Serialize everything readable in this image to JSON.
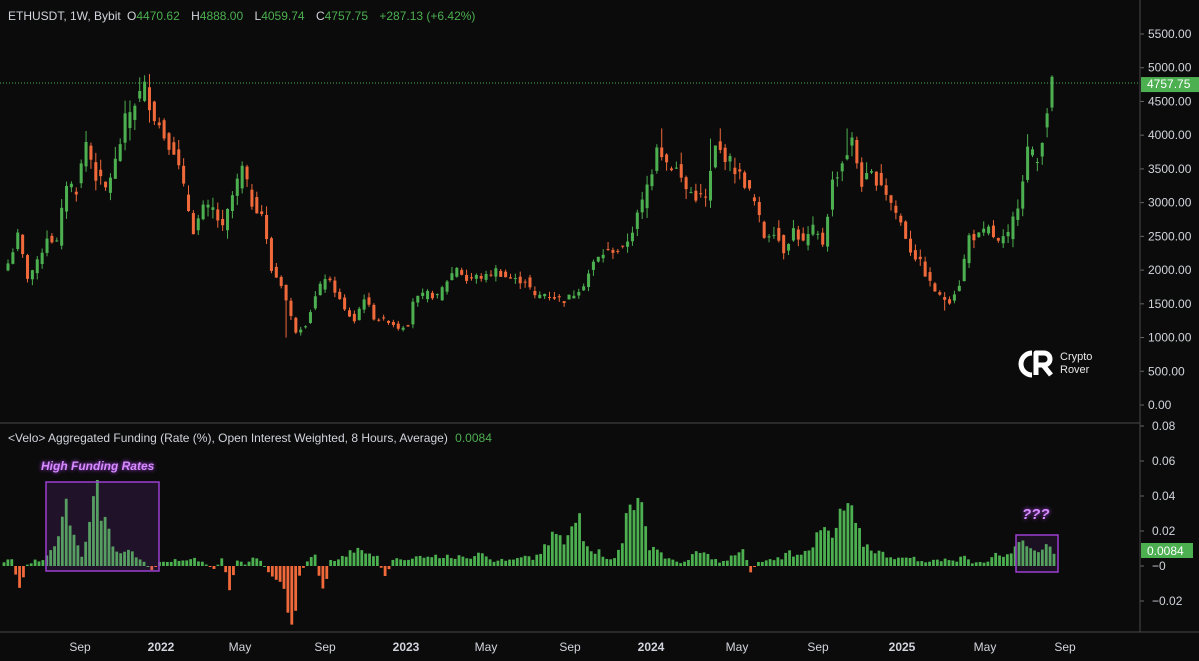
{
  "header": {
    "symbol": "ETHUSDT, 1W, Bybit",
    "o_label": "O",
    "o_value": "4470.62",
    "h_label": "H",
    "h_value": "4888.00",
    "l_label": "L",
    "l_value": "4059.74",
    "c_label": "C",
    "c_value": "4757.75",
    "change": "+287.13 (+6.42%)"
  },
  "indicator": {
    "title": "<Velo> Aggregated Funding (Rate (%), Open Interest Weighted, 8 Hours, Average)",
    "value": "0.0084"
  },
  "logo": {
    "line1": "Crypto",
    "line2": "Rover"
  },
  "annotations": {
    "high_funding": "High Funding Rates",
    "question": "???"
  },
  "colors": {
    "up": "#4caf50",
    "down": "#f0693a",
    "box": "#9c3fd1",
    "bg": "#0b0b0b"
  },
  "chart_data": [
    {
      "type": "candlestick",
      "title": "ETHUSDT, 1W, Bybit",
      "ylim": [
        0,
        5800
      ],
      "y_ticks": [
        "5500.00",
        "5000.00",
        "4500.00",
        "4000.00",
        "3500.00",
        "3000.00",
        "2500.00",
        "2000.00",
        "1500.00",
        "1000.00",
        "500.00",
        "0.00"
      ],
      "last_price_label": "4757.75",
      "x_ticks": [
        "Sep",
        "2022",
        "May",
        "Sep",
        "2023",
        "May",
        "Sep",
        "2024",
        "May",
        "Sep",
        "2025",
        "May",
        "Sep"
      ],
      "x": {
        "start": "2021-06-28",
        "interval_days": 7
      },
      "anchors": [
        [
          0,
          2100
        ],
        [
          2,
          2500
        ],
        [
          4,
          1900
        ],
        [
          6,
          2100
        ],
        [
          8,
          2500
        ],
        [
          10,
          2400
        ],
        [
          12,
          3300
        ],
        [
          14,
          3200
        ],
        [
          16,
          3900
        ],
        [
          18,
          3400
        ],
        [
          20,
          3200
        ],
        [
          22,
          3600
        ],
        [
          24,
          4200
        ],
        [
          26,
          4500
        ],
        [
          28,
          4700
        ],
        [
          30,
          4300
        ],
        [
          32,
          4000
        ],
        [
          34,
          3800
        ],
        [
          36,
          3200
        ],
        [
          38,
          2600
        ],
        [
          40,
          2900
        ],
        [
          42,
          2900
        ],
        [
          44,
          2600
        ],
        [
          46,
          3100
        ],
        [
          48,
          3500
        ],
        [
          50,
          3000
        ],
        [
          52,
          2850
        ],
        [
          54,
          2000
        ],
        [
          56,
          1800
        ],
        [
          58,
          1300
        ],
        [
          59,
          1100
        ],
        [
          61,
          1200
        ],
        [
          63,
          1600
        ],
        [
          65,
          1900
        ],
        [
          67,
          1700
        ],
        [
          69,
          1400
        ],
        [
          71,
          1250
        ],
        [
          73,
          1600
        ],
        [
          75,
          1300
        ],
        [
          77,
          1250
        ],
        [
          78,
          1250
        ],
        [
          80,
          1150
        ],
        [
          82,
          1200
        ],
        [
          83,
          1550
        ],
        [
          86,
          1650
        ],
        [
          88,
          1600
        ],
        [
          90,
          1850
        ],
        [
          92,
          2050
        ],
        [
          94,
          1850
        ],
        [
          96,
          1900
        ],
        [
          98,
          1900
        ],
        [
          100,
          2000
        ],
        [
          102,
          1900
        ],
        [
          104,
          1850
        ],
        [
          106,
          1850
        ],
        [
          108,
          1600
        ],
        [
          110,
          1650
        ],
        [
          112,
          1600
        ],
        [
          114,
          1550
        ],
        [
          116,
          1650
        ],
        [
          118,
          1800
        ],
        [
          120,
          2100
        ],
        [
          122,
          2250
        ],
        [
          124,
          2300
        ],
        [
          126,
          2300
        ],
        [
          128,
          2600
        ],
        [
          130,
          3000
        ],
        [
          132,
          3500
        ],
        [
          133,
          3900
        ],
        [
          135,
          3600
        ],
        [
          137,
          3500
        ],
        [
          139,
          3200
        ],
        [
          141,
          3100
        ],
        [
          143,
          3050
        ],
        [
          145,
          3800
        ],
        [
          147,
          3700
        ],
        [
          149,
          3500
        ],
        [
          151,
          3300
        ],
        [
          153,
          3000
        ],
        [
          155,
          2500
        ],
        [
          157,
          2600
        ],
        [
          159,
          2300
        ],
        [
          161,
          2600
        ],
        [
          163,
          2400
        ],
        [
          165,
          2600
        ],
        [
          167,
          2400
        ],
        [
          169,
          3300
        ],
        [
          171,
          3600
        ],
        [
          173,
          3900
        ],
        [
          175,
          3300
        ],
        [
          177,
          3400
        ],
        [
          179,
          3300
        ],
        [
          181,
          3000
        ],
        [
          183,
          2700
        ],
        [
          185,
          2300
        ],
        [
          187,
          2100
        ],
        [
          189,
          1800
        ],
        [
          191,
          1600
        ],
        [
          193,
          1550
        ],
        [
          195,
          1800
        ],
        [
          197,
          2500
        ],
        [
          199,
          2500
        ],
        [
          201,
          2600
        ],
        [
          203,
          2400
        ],
        [
          205,
          2500
        ],
        [
          207,
          3000
        ],
        [
          209,
          3800
        ],
        [
          211,
          3600
        ],
        [
          213,
          4400
        ],
        [
          214,
          4750
        ]
      ],
      "spikes": [
        [
          28,
          4888
        ],
        [
          57,
          1000
        ],
        [
          134,
          4100
        ],
        [
          144,
          3950
        ],
        [
          172,
          4100
        ],
        [
          192,
          1400
        ],
        [
          214,
          4888
        ]
      ]
    },
    {
      "type": "bar",
      "title": "<Velo> Aggregated Funding (Rate (%), Open Interest Weighted, 8 Hours, Average)",
      "ylim": [
        -0.04,
        0.08
      ],
      "y_ticks": [
        "0.08",
        "0.06",
        "0.04",
        "0.02",
        "−0",
        "−0.02"
      ],
      "last_value_label": "0.0084",
      "anchors": [
        [
          0,
          0.002
        ],
        [
          2,
          0.004
        ],
        [
          4,
          -0.012
        ],
        [
          6,
          0.001
        ],
        [
          8,
          0.003
        ],
        [
          10,
          0.003
        ],
        [
          12,
          0.012
        ],
        [
          14,
          0.015
        ],
        [
          16,
          0.035
        ],
        [
          18,
          0.015
        ],
        [
          20,
          0.006
        ],
        [
          21,
          0.012
        ],
        [
          23,
          0.033
        ],
        [
          24,
          0.04
        ],
        [
          26,
          0.025
        ],
        [
          28,
          0.013
        ],
        [
          30,
          0.007
        ],
        [
          32,
          0.009
        ],
        [
          34,
          0.005
        ],
        [
          36,
          0.003
        ],
        [
          38,
          -0.003
        ],
        [
          40,
          0.002
        ],
        [
          42,
          0.002
        ],
        [
          44,
          0.004
        ],
        [
          46,
          0.003
        ],
        [
          48,
          0.005
        ],
        [
          50,
          0.003
        ],
        [
          52,
          0.001
        ],
        [
          54,
          -0.002
        ],
        [
          56,
          0.004
        ],
        [
          58,
          -0.012
        ],
        [
          60,
          0.003
        ],
        [
          62,
          0.001
        ],
        [
          64,
          0.004
        ],
        [
          66,
          0.003
        ],
        [
          68,
          -0.003
        ],
        [
          70,
          -0.007
        ],
        [
          72,
          -0.015
        ],
        [
          74,
          -0.038
        ],
        [
          76,
          -0.005
        ],
        [
          78,
          0.003
        ],
        [
          80,
          0.006
        ],
        [
          82,
          -0.016
        ],
        [
          84,
          0.003
        ],
        [
          86,
          0.004
        ],
        [
          88,
          0.006
        ],
        [
          90,
          0.009
        ],
        [
          92,
          0.008
        ],
        [
          94,
          0.007
        ],
        [
          96,
          0.005
        ],
        [
          98,
          -0.007
        ],
        [
          100,
          0.004
        ],
        [
          102,
          0.005
        ],
        [
          104,
          0.003
        ],
        [
          106,
          0.005
        ],
        [
          108,
          0.006
        ],
        [
          110,
          0.006
        ],
        [
          112,
          0.005
        ],
        [
          114,
          0.007
        ],
        [
          116,
          0.004
        ],
        [
          118,
          0.006
        ],
        [
          120,
          0.005
        ],
        [
          122,
          0.009
        ],
        [
          124,
          0.007
        ],
        [
          126,
          0.002
        ],
        [
          128,
          0.004
        ],
        [
          130,
          0.003
        ],
        [
          132,
          0.004
        ],
        [
          134,
          0.005
        ],
        [
          136,
          0.004
        ],
        [
          138,
          0.008
        ],
        [
          140,
          0.012
        ],
        [
          142,
          0.02
        ],
        [
          144,
          0.012
        ],
        [
          145,
          0.016
        ],
        [
          146,
          0.02
        ],
        [
          148,
          0.03
        ],
        [
          149,
          0.018
        ],
        [
          151,
          0.01
        ],
        [
          153,
          0.008
        ],
        [
          155,
          0.005
        ],
        [
          157,
          0.004
        ],
        [
          159,
          0.013
        ],
        [
          160,
          0.03
        ],
        [
          161,
          0.043
        ],
        [
          162,
          0.038
        ],
        [
          164,
          0.03
        ],
        [
          166,
          0.012
        ],
        [
          168,
          0.01
        ],
        [
          170,
          0.005
        ],
        [
          172,
          0.003
        ],
        [
          174,
          0.002
        ],
        [
          176,
          0.003
        ],
        [
          178,
          0.008
        ],
        [
          180,
          0.007
        ],
        [
          182,
          0.005
        ],
        [
          184,
          0.002
        ],
        [
          186,
          0.003
        ],
        [
          188,
          0.007
        ],
        [
          190,
          0.009
        ],
        [
          192,
          -0.003
        ],
        [
          194,
          0.002
        ],
        [
          196,
          0.003
        ],
        [
          198,
          0.004
        ],
        [
          200,
          0.005
        ],
        [
          202,
          0.008
        ],
        [
          204,
          0.006
        ],
        [
          206,
          0.01
        ],
        [
          208,
          0.012
        ],
        [
          210,
          0.019
        ],
        [
          211,
          0.021
        ],
        [
          213,
          0.015
        ],
        [
          215,
          0.027
        ],
        [
          217,
          0.035
        ],
        [
          219,
          0.022
        ],
        [
          221,
          0.013
        ],
        [
          223,
          0.01
        ],
        [
          225,
          0.008
        ],
        [
          227,
          0.006
        ],
        [
          229,
          0.005
        ],
        [
          231,
          0.004
        ],
        [
          233,
          0.006
        ],
        [
          235,
          0.003
        ],
        [
          237,
          0.002
        ],
        [
          239,
          0.004
        ],
        [
          241,
          0.003
        ],
        [
          243,
          0.004
        ],
        [
          245,
          0.003
        ],
        [
          247,
          0.006
        ],
        [
          249,
          0.002
        ],
        [
          251,
          0.003
        ],
        [
          253,
          0.002
        ],
        [
          255,
          0.008
        ],
        [
          257,
          0.006
        ],
        [
          259,
          0.008
        ],
        [
          261,
          0.013
        ],
        [
          263,
          0.014
        ],
        [
          265,
          0.008
        ],
        [
          267,
          0.012
        ],
        [
          269,
          0.009
        ],
        [
          270,
          0.0084
        ]
      ]
    }
  ]
}
